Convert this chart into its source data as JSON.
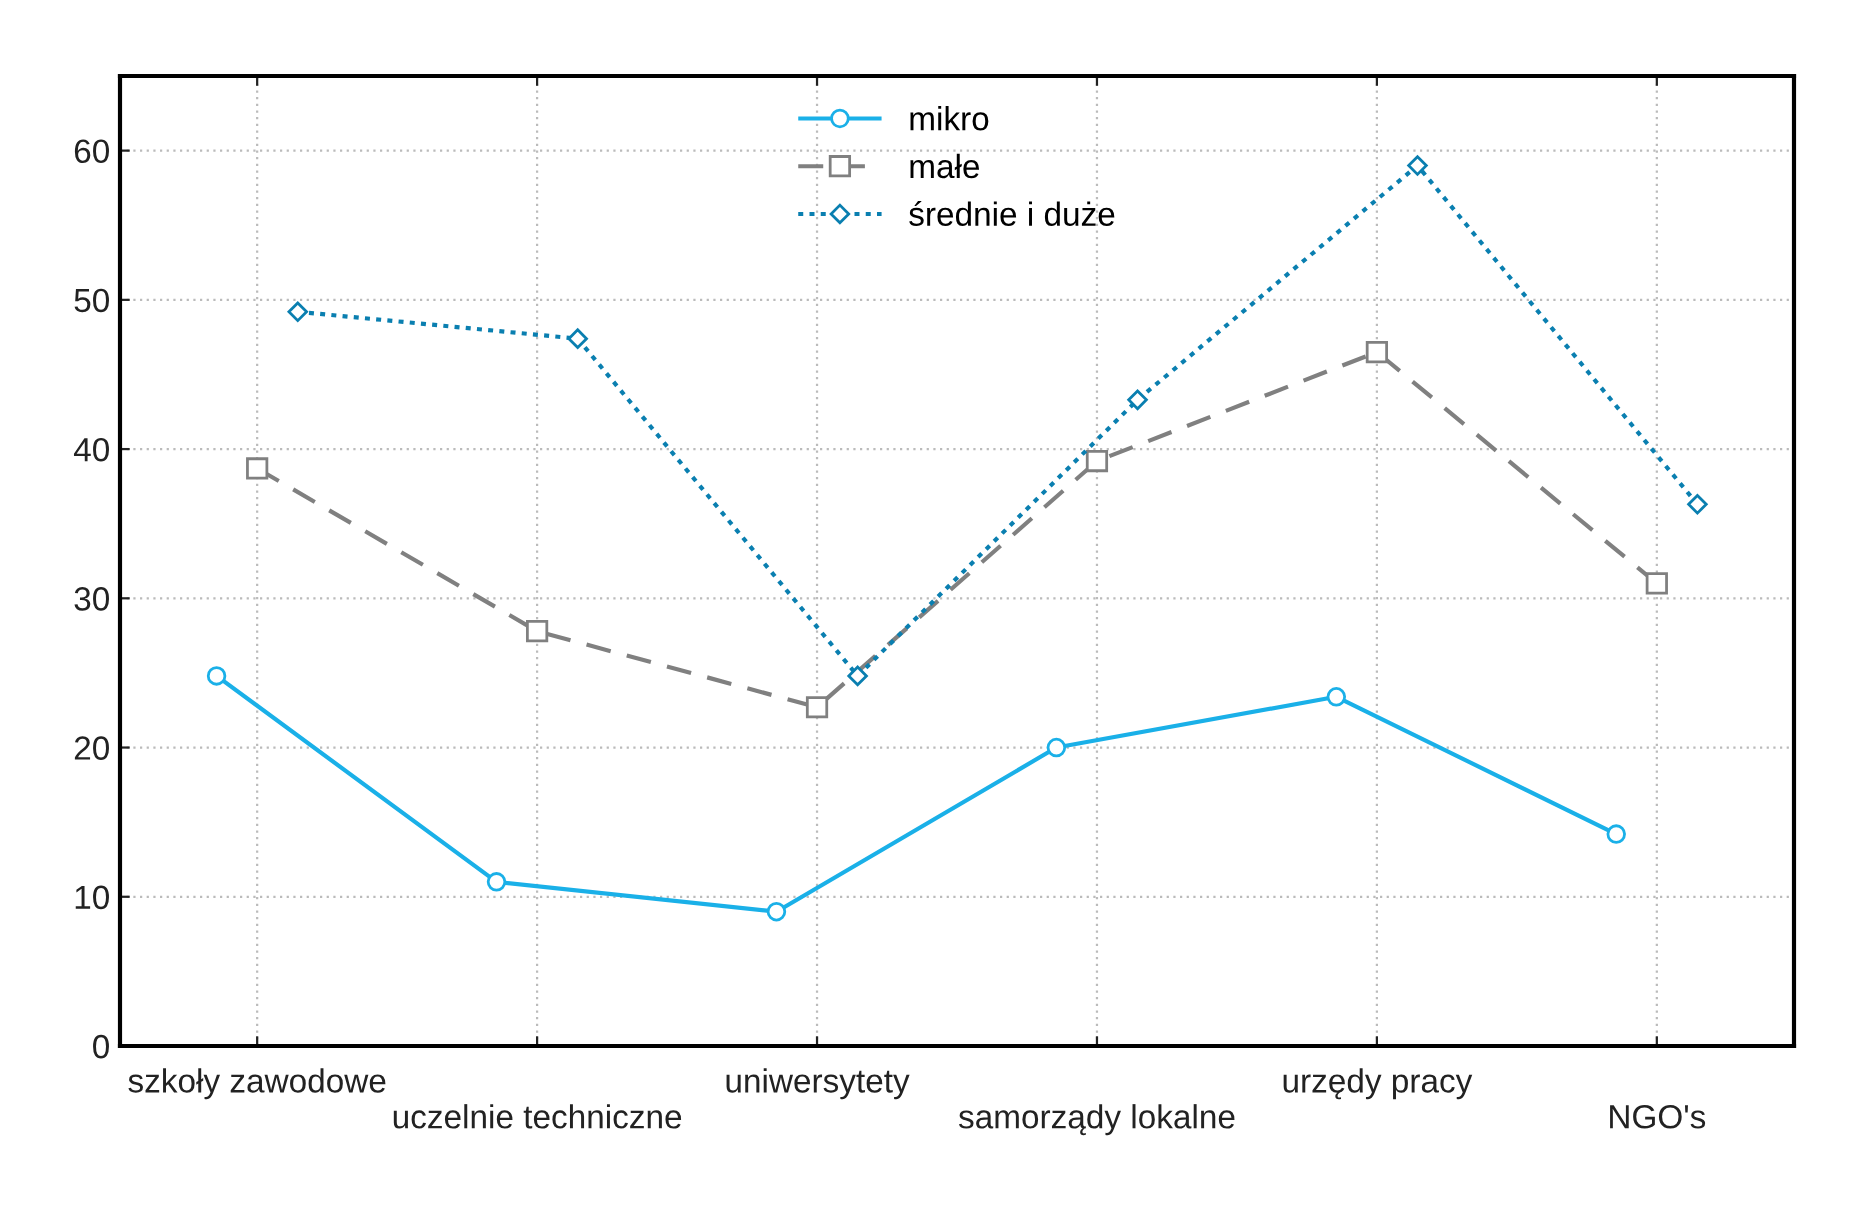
{
  "chart_data": {
    "type": "line",
    "ylim": [
      0,
      65
    ],
    "yticks": [
      0,
      10,
      20,
      30,
      40,
      50,
      60
    ],
    "categories": [
      "szkoły zawodowe",
      "uczelnie techniczne",
      "uniwersytety",
      "samorządy lokalne",
      "urzędy pracy",
      "NGO's"
    ],
    "grid": true,
    "legend": "top",
    "series": [
      {
        "name": "mikro",
        "color": "#1ab0e8",
        "marker": "circle",
        "line_style": "solid",
        "values": [
          24.8,
          11,
          9,
          20,
          23.4,
          14.2
        ]
      },
      {
        "name": "małe",
        "color": "#808080",
        "marker": "square",
        "line_style": "dashed",
        "values": [
          38.7,
          27.8,
          22.7,
          39.2,
          46.5,
          31
        ]
      },
      {
        "name": "średnie i duże",
        "color": "#0a7fb0",
        "marker": "diamond",
        "line_style": "dotted",
        "values": [
          49.2,
          47.4,
          24.8,
          43.3,
          59,
          36.3
        ]
      }
    ]
  }
}
